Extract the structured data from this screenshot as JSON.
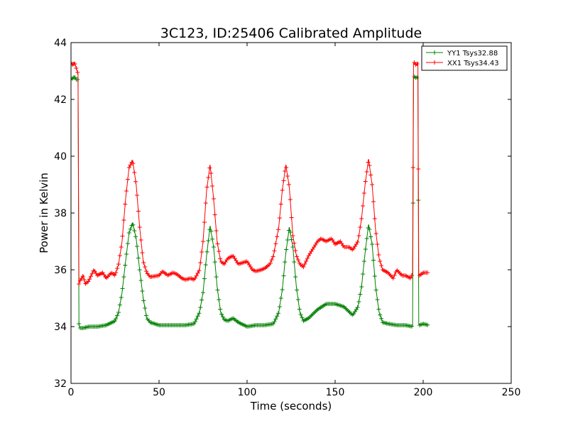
{
  "chart_data": {
    "type": "line",
    "title": "3C123, ID:25406 Calibrated Amplitude",
    "xlabel": "Time (seconds)",
    "ylabel": "Power in Kelvin",
    "xlim": [
      0,
      250
    ],
    "ylim": [
      32,
      44
    ],
    "xticks": [
      "0",
      "50",
      "100",
      "150",
      "200",
      "250"
    ],
    "yticks": [
      "32",
      "34",
      "36",
      "38",
      "40",
      "42",
      "44"
    ],
    "grid": false,
    "legend_position": "top-right",
    "marker": "+",
    "series": [
      {
        "name": "YY1 Tsys32.88",
        "color": "#008000",
        "x": [
          0,
          1,
          2,
          3,
          4,
          4.5,
          5,
          7,
          10,
          15,
          20,
          25,
          27,
          29,
          31,
          33,
          35,
          37,
          39,
          41,
          43,
          45,
          50,
          55,
          60,
          65,
          70,
          73,
          75,
          77,
          79,
          81,
          83,
          85,
          87,
          89,
          92,
          95,
          100,
          105,
          110,
          115,
          118,
          120,
          122,
          124,
          126,
          128,
          130,
          132,
          135,
          140,
          145,
          150,
          155,
          160,
          163,
          165,
          167,
          169,
          171,
          173,
          175,
          177,
          180,
          185,
          190,
          194,
          194.5,
          195,
          196,
          197,
          197.5,
          198,
          200,
          203
        ],
        "y": [
          42.7,
          42.75,
          42.8,
          42.7,
          42.7,
          34.1,
          33.95,
          33.95,
          34.0,
          34.0,
          34.05,
          34.2,
          34.5,
          35.2,
          36.3,
          37.3,
          37.65,
          37.1,
          36.0,
          35.0,
          34.3,
          34.15,
          34.05,
          34.05,
          34.05,
          34.05,
          34.1,
          34.5,
          35.2,
          36.5,
          37.55,
          36.8,
          35.4,
          34.5,
          34.25,
          34.2,
          34.3,
          34.15,
          34.0,
          34.05,
          34.05,
          34.1,
          34.5,
          35.3,
          36.6,
          37.5,
          36.8,
          35.4,
          34.5,
          34.2,
          34.3,
          34.6,
          34.8,
          34.8,
          34.7,
          34.4,
          34.7,
          35.4,
          36.6,
          37.6,
          36.9,
          35.4,
          34.5,
          34.15,
          34.1,
          34.05,
          34.05,
          34.0,
          42.7,
          42.8,
          42.75,
          42.8,
          34.1,
          34.05,
          34.1,
          34.05
        ]
      },
      {
        "name": "XX1 Tsys34.43",
        "color": "#ff0000",
        "x": [
          0,
          1,
          2,
          3,
          4,
          4.5,
          5,
          7,
          8,
          10,
          13,
          15,
          18,
          20,
          23,
          25,
          27,
          29,
          31,
          33,
          35,
          37,
          39,
          41,
          43,
          45,
          50,
          52,
          55,
          58,
          60,
          63,
          65,
          68,
          70,
          73,
          75,
          77,
          79,
          81,
          83,
          85,
          87,
          89,
          92,
          95,
          100,
          103,
          105,
          108,
          110,
          113,
          115,
          118,
          120,
          122,
          124,
          126,
          128,
          130,
          132,
          135,
          140,
          142,
          145,
          148,
          150,
          153,
          155,
          158,
          160,
          163,
          165,
          167,
          169,
          171,
          173,
          175,
          177,
          180,
          183,
          185,
          188,
          190,
          193,
          194,
          194.5,
          195,
          196,
          197,
          197.5,
          198,
          200,
          203
        ],
        "y": [
          43.3,
          43.2,
          43.3,
          43.1,
          42.9,
          35.5,
          35.6,
          35.8,
          35.5,
          35.6,
          36.0,
          35.8,
          35.9,
          35.7,
          35.9,
          35.8,
          36.2,
          37.0,
          38.5,
          39.6,
          39.85,
          39.0,
          37.5,
          36.3,
          35.9,
          35.75,
          35.8,
          35.95,
          35.8,
          35.9,
          35.85,
          35.7,
          35.65,
          35.7,
          35.65,
          36.0,
          37.0,
          38.8,
          39.7,
          38.5,
          37.0,
          36.3,
          36.2,
          36.4,
          36.5,
          36.2,
          36.3,
          36.0,
          35.95,
          36.0,
          36.05,
          36.2,
          36.5,
          37.5,
          38.8,
          39.7,
          38.9,
          37.2,
          36.5,
          36.2,
          36.1,
          36.5,
          37.0,
          37.1,
          37.0,
          37.1,
          36.9,
          37.0,
          36.8,
          36.8,
          36.7,
          37.0,
          37.8,
          39.0,
          39.9,
          39.0,
          37.4,
          36.4,
          36.0,
          35.9,
          35.7,
          36.0,
          35.8,
          35.8,
          35.7,
          35.9,
          43.3,
          43.3,
          43.2,
          43.3,
          35.8,
          35.8,
          35.9,
          35.9
        ]
      }
    ]
  }
}
